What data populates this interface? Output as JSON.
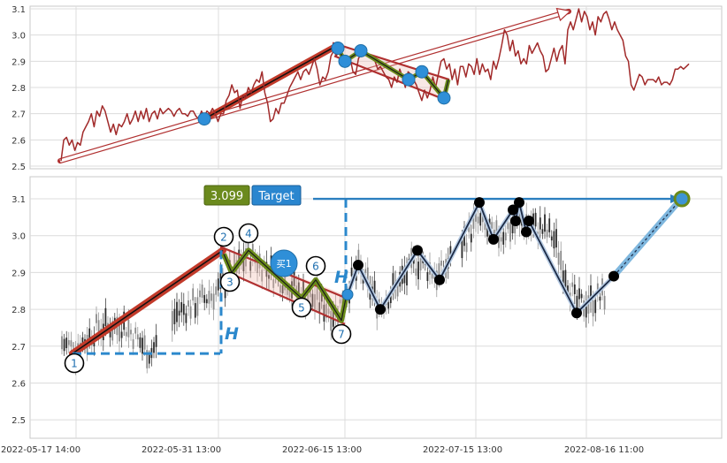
{
  "chart_data": [
    {
      "type": "line",
      "panel": "top",
      "ylim": [
        2.49,
        3.11
      ],
      "yticks": [
        "2.5",
        "2.6",
        "2.7",
        "2.8",
        "2.9",
        "3.0",
        "3.1"
      ],
      "series": [
        {
          "values": [
            2.52,
            2.6,
            2.61,
            2.58,
            2.6,
            2.56,
            2.59,
            2.58,
            2.63,
            2.65,
            2.67,
            2.7,
            2.65,
            2.71,
            2.69,
            2.73,
            2.71,
            2.67,
            2.63,
            2.66,
            2.62,
            2.66,
            2.65,
            2.67,
            2.7,
            2.66,
            2.68,
            2.71,
            2.67,
            2.71,
            2.68,
            2.72,
            2.67,
            2.7,
            2.71,
            2.68,
            2.72,
            2.7,
            2.71,
            2.72,
            2.71,
            2.69,
            2.71,
            2.72,
            2.7,
            2.7,
            2.69,
            2.71,
            2.71,
            2.69,
            2.68,
            2.71,
            2.69,
            2.71,
            2.7,
            2.72,
            2.7,
            2.67,
            2.7,
            2.7,
            2.75,
            2.77,
            2.81,
            2.78,
            2.79,
            2.72,
            2.77,
            2.76,
            2.8,
            2.78,
            2.81,
            2.83,
            2.82,
            2.86,
            2.78,
            2.74,
            2.67,
            2.68,
            2.72,
            2.7,
            2.74,
            2.74,
            2.77,
            2.8,
            2.82,
            2.84,
            2.86,
            2.83,
            2.86,
            2.87,
            2.85,
            2.88,
            2.91,
            2.87,
            2.81,
            2.84,
            2.83,
            2.86,
            2.92,
            2.94,
            2.92,
            2.95,
            2.93,
            2.91,
            2.89,
            2.91,
            2.86,
            2.85,
            2.91,
            2.93,
            2.95,
            2.93,
            2.92,
            2.91,
            2.9,
            2.87,
            2.88,
            2.86,
            2.84,
            2.83,
            2.8,
            2.84,
            2.82,
            2.87,
            2.84,
            2.8,
            2.86,
            2.85,
            2.83,
            2.81,
            2.78,
            2.75,
            2.79,
            2.76,
            2.79,
            2.84,
            2.8,
            2.85,
            2.9,
            2.91,
            2.87,
            2.89,
            2.83,
            2.87,
            2.81,
            2.88,
            2.88,
            2.84,
            2.89,
            2.88,
            2.85,
            2.91,
            2.85,
            2.89,
            2.86,
            2.87,
            2.83,
            2.9,
            2.87,
            2.91,
            2.96,
            3.02,
            3.0,
            2.94,
            2.98,
            2.92,
            2.94,
            2.89,
            2.91,
            2.89,
            2.96,
            2.93,
            2.95,
            2.97,
            2.94,
            2.92,
            2.86,
            2.87,
            2.91,
            2.95,
            2.9,
            2.94,
            2.96,
            2.89,
            3.02,
            3.05,
            3.02,
            3.06,
            3.1,
            3.05,
            3.09,
            3.07,
            3.02,
            3.05,
            3.0,
            3.07,
            3.05,
            3.08,
            3.09,
            3.06,
            3.02,
            3.05,
            3.02,
            3.0,
            2.98,
            2.92,
            2.9,
            2.81,
            2.79,
            2.82,
            2.85,
            2.84,
            2.81,
            2.83,
            2.83,
            2.83,
            2.82,
            2.84,
            2.81,
            2.82,
            2.82,
            2.81,
            2.83,
            2.87,
            2.87,
            2.88,
            2.87,
            2.88,
            2.89
          ]
        }
      ]
    },
    {
      "type": "candlestick",
      "panel": "bottom",
      "ylim": [
        2.45,
        3.16
      ],
      "yticks": [
        "2.5",
        "2.6",
        "2.7",
        "2.8",
        "2.9",
        "3.0",
        "3.1"
      ],
      "xticks": [
        "2022-05-17 14:00",
        "2022-05-31 13:00",
        "2022-06-15 13:00",
        "2022-07-15 13:00",
        "2022-08-16 11:00"
      ],
      "zigzag_points": [
        {
          "label": "1",
          "y": 2.68
        },
        {
          "label": "2",
          "y": 2.95
        },
        {
          "label": "3",
          "y": 2.9
        },
        {
          "label": "4",
          "y": 2.96
        },
        {
          "label": "5",
          "y": 2.83
        },
        {
          "label": "6",
          "y": 2.88
        },
        {
          "label": "7",
          "y": 2.77
        }
      ],
      "follow_path": [
        2.84,
        2.92,
        2.8,
        2.96,
        2.88,
        3.09,
        2.99,
        3.07,
        3.04,
        3.09,
        3.01,
        3.04,
        2.79,
        2.89,
        3.1
      ],
      "badge_text": "买1",
      "target_value": "3.099",
      "target_label": "Target",
      "h_label": "H"
    }
  ]
}
